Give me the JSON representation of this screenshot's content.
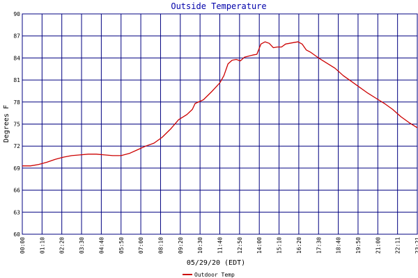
{
  "chart_data": {
    "type": "line",
    "title": "Outside Temperature",
    "xlabel": "05/29/20 (EDT)",
    "ylabel": "Degrees F",
    "ylim": [
      60,
      90
    ],
    "y_ticks": [
      60,
      63,
      66,
      69,
      72,
      75,
      78,
      81,
      84,
      87,
      90
    ],
    "x_ticks": [
      "00:00",
      "01:10",
      "02:20",
      "03:30",
      "04:40",
      "05:50",
      "07:00",
      "08:10",
      "09:20",
      "10:30",
      "11:40",
      "12:50",
      "14:00",
      "15:10",
      "16:20",
      "17:30",
      "18:40",
      "19:50",
      "21:00",
      "22:11",
      "23:21"
    ],
    "grid": true,
    "legend_position": "bottom-center",
    "colors": {
      "title": "#0000aa",
      "grid": "#000080",
      "series": "#cc0000"
    },
    "series": [
      {
        "name": "Outdoor Temp",
        "points": [
          [
            "00:00",
            69.3
          ],
          [
            "00:30",
            69.3
          ],
          [
            "01:00",
            69.5
          ],
          [
            "01:30",
            69.8
          ],
          [
            "02:00",
            70.2
          ],
          [
            "02:30",
            70.5
          ],
          [
            "03:00",
            70.7
          ],
          [
            "03:30",
            70.8
          ],
          [
            "04:00",
            70.9
          ],
          [
            "04:30",
            70.9
          ],
          [
            "05:00",
            70.8
          ],
          [
            "05:30",
            70.7
          ],
          [
            "06:00",
            70.7
          ],
          [
            "06:30",
            71.0
          ],
          [
            "07:00",
            71.5
          ],
          [
            "07:30",
            72.0
          ],
          [
            "08:00",
            72.4
          ],
          [
            "08:30",
            73.2
          ],
          [
            "09:00",
            74.3
          ],
          [
            "09:30",
            75.6
          ],
          [
            "10:00",
            76.3
          ],
          [
            "10:20",
            77.0
          ],
          [
            "10:30",
            77.8
          ],
          [
            "11:00",
            78.3
          ],
          [
            "11:30",
            79.4
          ],
          [
            "12:00",
            80.6
          ],
          [
            "12:15",
            81.6
          ],
          [
            "12:30",
            83.2
          ],
          [
            "12:45",
            83.7
          ],
          [
            "13:00",
            83.8
          ],
          [
            "13:15",
            83.6
          ],
          [
            "13:30",
            84.1
          ],
          [
            "14:00",
            84.4
          ],
          [
            "14:15",
            84.5
          ],
          [
            "14:30",
            85.9
          ],
          [
            "14:45",
            86.2
          ],
          [
            "15:00",
            86.0
          ],
          [
            "15:15",
            85.4
          ],
          [
            "15:30",
            85.5
          ],
          [
            "15:45",
            85.5
          ],
          [
            "16:00",
            85.9
          ],
          [
            "16:30",
            86.1
          ],
          [
            "16:45",
            86.2
          ],
          [
            "17:00",
            85.9
          ],
          [
            "17:15",
            85.1
          ],
          [
            "17:30",
            84.8
          ],
          [
            "18:00",
            84.0
          ],
          [
            "18:30",
            83.3
          ],
          [
            "19:00",
            82.6
          ],
          [
            "19:30",
            81.6
          ],
          [
            "20:00",
            80.8
          ],
          [
            "20:30",
            80.0
          ],
          [
            "21:00",
            79.2
          ],
          [
            "21:30",
            78.5
          ],
          [
            "22:00",
            77.8
          ],
          [
            "22:30",
            77.0
          ],
          [
            "23:00",
            76.0
          ],
          [
            "23:30",
            75.2
          ],
          [
            "24:00",
            74.5
          ]
        ]
      }
    ]
  }
}
